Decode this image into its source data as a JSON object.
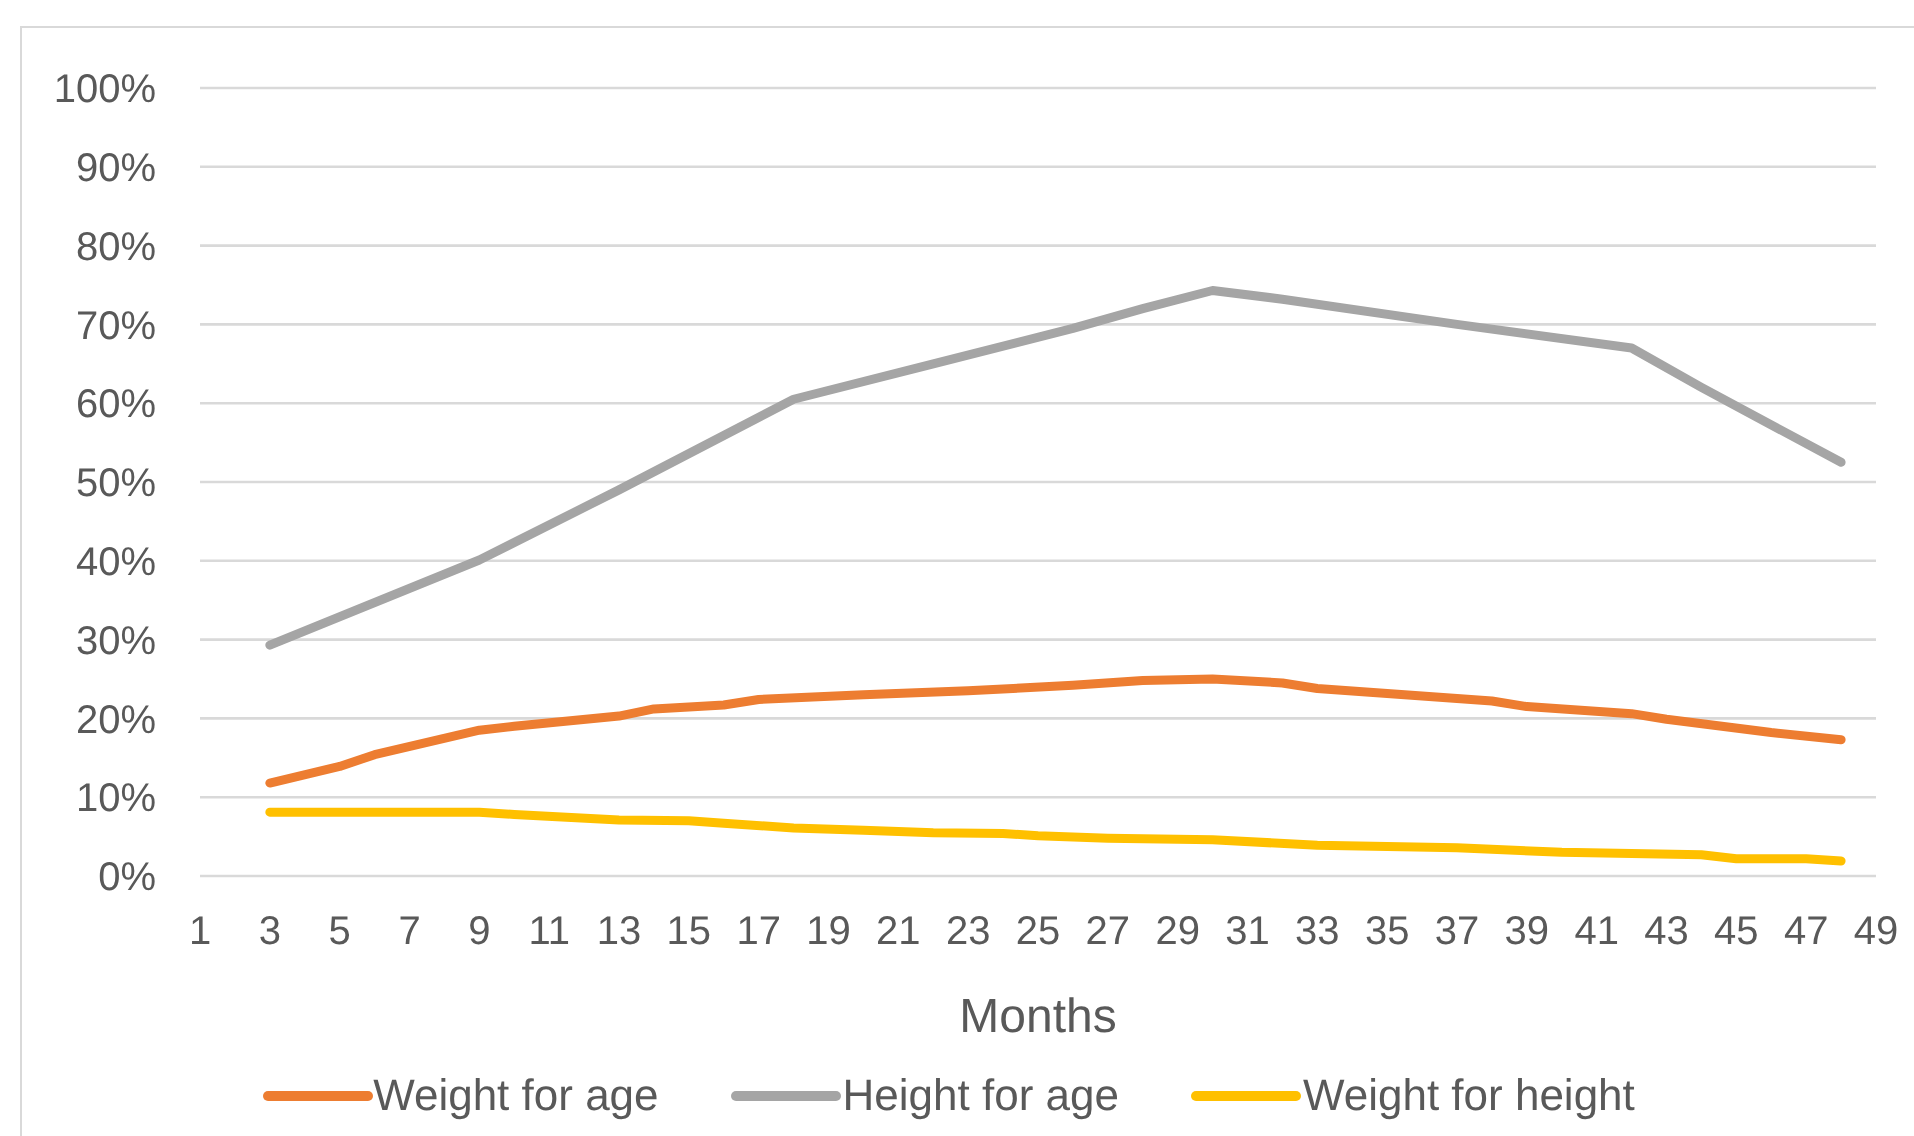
{
  "chart_data": {
    "type": "line",
    "xlabel": "Months",
    "xlim": [
      1,
      49
    ],
    "xticks": [
      1,
      3,
      5,
      7,
      9,
      11,
      13,
      15,
      17,
      19,
      21,
      23,
      25,
      27,
      29,
      31,
      33,
      35,
      37,
      39,
      41,
      43,
      45,
      47,
      49
    ],
    "ylim": [
      0,
      100
    ],
    "yticks": [
      {
        "value": 0,
        "label": "0%"
      },
      {
        "value": 10,
        "label": "10%"
      },
      {
        "value": 20,
        "label": "20%"
      },
      {
        "value": 30,
        "label": "30%"
      },
      {
        "value": 40,
        "label": "40%"
      },
      {
        "value": 50,
        "label": "50%"
      },
      {
        "value": 60,
        "label": "60%"
      },
      {
        "value": 70,
        "label": "70%"
      },
      {
        "value": 80,
        "label": "80%"
      },
      {
        "value": 90,
        "label": "90%"
      },
      {
        "value": 100,
        "label": "100%"
      }
    ],
    "grid": "y",
    "legend": "bottom",
    "marker": "none",
    "line_style": "solid",
    "series": [
      {
        "name": "Weight for age",
        "color": "#ed7d31",
        "x": [
          3,
          5,
          6,
          9,
          10,
          13,
          14,
          16,
          17,
          20,
          23,
          26,
          28,
          30,
          32,
          33,
          38,
          39,
          42,
          43,
          46,
          48
        ],
        "values": [
          11.8,
          13.9,
          15.4,
          18.5,
          19,
          20.3,
          21.2,
          21.7,
          22.4,
          23,
          23.5,
          24.2,
          24.8,
          25,
          24.5,
          23.8,
          22.2,
          21.5,
          20.6,
          19.9,
          18.2,
          17.3
        ]
      },
      {
        "name": "Height for age",
        "color": "#a5a5a5",
        "x": [
          3,
          9,
          13,
          18,
          22,
          26,
          28,
          30,
          32,
          37,
          42,
          44,
          48
        ],
        "values": [
          29.3,
          40.1,
          49,
          60.5,
          65,
          69.5,
          72,
          74.3,
          73.2,
          70,
          67,
          62,
          52.5
        ]
      },
      {
        "name": "Weight for height",
        "color": "#ffc000",
        "x": [
          3,
          9,
          10,
          13,
          15,
          16,
          18,
          20,
          22,
          24,
          25,
          27,
          30,
          33,
          37,
          40,
          44,
          45,
          47,
          48
        ],
        "values": [
          8.1,
          8.1,
          7.8,
          7.1,
          7,
          6.7,
          6.1,
          5.8,
          5.5,
          5.4,
          5.1,
          4.8,
          4.6,
          3.9,
          3.6,
          3,
          2.7,
          2.2,
          2.2,
          1.9
        ]
      }
    ]
  }
}
